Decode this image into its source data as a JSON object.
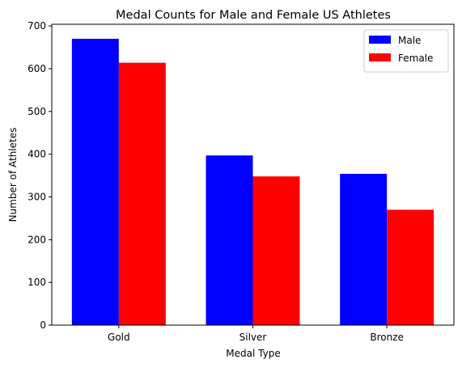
{
  "chart_data": {
    "type": "bar",
    "title": "Medal Counts for Male and Female US Athletes",
    "xlabel": "Medal Type",
    "ylabel": "Number of Athletes",
    "categories": [
      "Gold",
      "Silver",
      "Bronze"
    ],
    "series": [
      {
        "name": "Male",
        "values": [
          670,
          397,
          354
        ],
        "color": "#0000ff"
      },
      {
        "name": "Female",
        "values": [
          614,
          348,
          270
        ],
        "color": "#ff0000"
      }
    ],
    "ylim": [
      0,
      704
    ],
    "yticks": [
      0,
      100,
      200,
      300,
      400,
      500,
      600,
      700
    ],
    "grid": false,
    "legend_position": "top-right"
  }
}
